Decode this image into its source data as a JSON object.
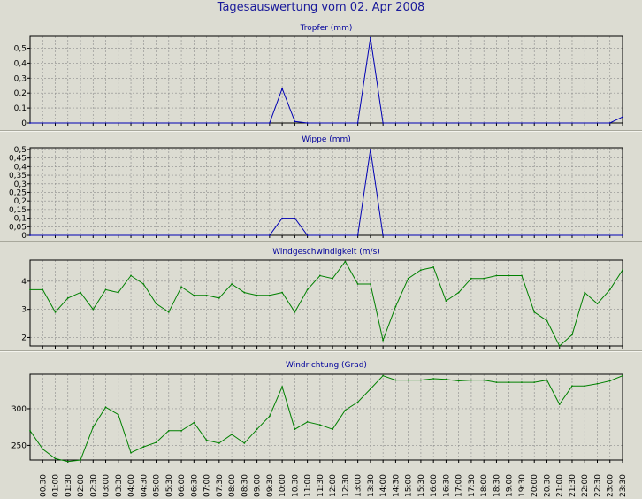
{
  "title": "Tagesauswertung vom 02. Apr 2008",
  "x_ticks": [
    "00:30",
    "01:00",
    "01:30",
    "02:00",
    "02:30",
    "03:00",
    "03:30",
    "04:00",
    "04:30",
    "05:00",
    "05:30",
    "06:00",
    "06:30",
    "07:00",
    "07:30",
    "08:00",
    "08:30",
    "09:00",
    "09:30",
    "10:00",
    "10:30",
    "11:00",
    "11:30",
    "12:00",
    "12:30",
    "13:00",
    "13:30",
    "14:00",
    "14:30",
    "15:00",
    "15:30",
    "16:00",
    "16:30",
    "17:00",
    "17:30",
    "18:00",
    "18:30",
    "19:00",
    "19:30",
    "20:00",
    "20:30",
    "21:00",
    "21:30",
    "22:00",
    "22:30",
    "23:00",
    "23:30"
  ],
  "colors": {
    "rain": "#0000b4",
    "wind": "#008000",
    "grid": "#8c8c8c",
    "axis": "#000000",
    "panel_title": "#00009c"
  },
  "chart_data": [
    {
      "type": "line",
      "title": "Tropfer (mm)",
      "xlim": [
        "00:00",
        "23:30"
      ],
      "ylim": [
        0,
        0.58
      ],
      "y_ticks": [
        "0",
        "0,1",
        "0,2",
        "0,3",
        "0,4",
        "0,5"
      ],
      "y_tick_values": [
        0,
        0.1,
        0.2,
        0.3,
        0.4,
        0.5
      ],
      "grid": true,
      "series": [
        {
          "x": [
            "00:00",
            "09:30",
            "10:00",
            "10:30",
            "11:00",
            "13:00",
            "13:30",
            "14:00",
            "23:00",
            "23:30"
          ],
          "values": [
            0,
            0,
            0.23,
            0.01,
            0,
            0,
            0.57,
            0,
            0,
            0.04
          ]
        }
      ]
    },
    {
      "type": "line",
      "title": "Wippe (mm)",
      "xlim": [
        "00:00",
        "23:30"
      ],
      "ylim": [
        0,
        0.51
      ],
      "y_ticks": [
        "0",
        "0,05",
        "0,1",
        "0,15",
        "0,2",
        "0,25",
        "0,3",
        "0,35",
        "0,4",
        "0,45",
        "0,5"
      ],
      "y_tick_values": [
        0,
        0.05,
        0.1,
        0.15,
        0.2,
        0.25,
        0.3,
        0.35,
        0.4,
        0.45,
        0.5
      ],
      "grid": true,
      "series": [
        {
          "x": [
            "00:00",
            "09:30",
            "10:00",
            "10:30",
            "11:00",
            "13:00",
            "13:30",
            "14:00",
            "23:30"
          ],
          "values": [
            0,
            0,
            0.1,
            0.1,
            0,
            0,
            0.5,
            0,
            0
          ]
        }
      ]
    },
    {
      "type": "line",
      "title": "Windgeschwindigkeit (m/s)",
      "xlim": [
        "00:00",
        "23:30"
      ],
      "ylim": [
        1.7,
        4.75
      ],
      "y_ticks": [
        "2",
        "3",
        "4"
      ],
      "y_tick_values": [
        2,
        3,
        4
      ],
      "grid": true,
      "series": [
        {
          "x": [
            "00:00",
            "00:30",
            "01:00",
            "01:30",
            "02:00",
            "02:30",
            "03:00",
            "03:30",
            "04:00",
            "04:30",
            "05:00",
            "05:30",
            "06:00",
            "06:30",
            "07:00",
            "07:30",
            "08:00",
            "08:30",
            "09:00",
            "09:30",
            "10:00",
            "10:30",
            "11:00",
            "11:30",
            "12:00",
            "12:30",
            "13:00",
            "13:30",
            "14:00",
            "14:30",
            "15:00",
            "15:30",
            "16:00",
            "16:30",
            "17:00",
            "17:30",
            "18:00",
            "18:30",
            "19:00",
            "19:30",
            "20:00",
            "20:30",
            "21:00",
            "21:30",
            "22:00",
            "22:30",
            "23:00",
            "23:30"
          ],
          "values": [
            3.7,
            3.7,
            2.9,
            3.4,
            3.6,
            3.0,
            3.7,
            3.6,
            4.2,
            3.9,
            3.2,
            2.9,
            3.8,
            3.5,
            3.5,
            3.4,
            3.9,
            3.6,
            3.5,
            3.5,
            3.6,
            2.9,
            3.7,
            4.2,
            4.1,
            4.7,
            3.9,
            3.9,
            1.9,
            3.1,
            4.1,
            4.4,
            4.5,
            3.3,
            3.6,
            4.1,
            4.1,
            4.2,
            4.2,
            4.2,
            2.9,
            2.6,
            1.7,
            2.1,
            3.6,
            3.2,
            3.7,
            4.4
          ]
        }
      ]
    },
    {
      "type": "line",
      "title": "Windrichtung (Grad)",
      "xlim": [
        "00:00",
        "23:30"
      ],
      "ylim": [
        230,
        347
      ],
      "y_ticks": [
        "250",
        "300"
      ],
      "y_tick_values": [
        250,
        300
      ],
      "grid": true,
      "series": [
        {
          "x": [
            "00:00",
            "00:30",
            "01:00",
            "01:30",
            "02:00",
            "02:30",
            "03:00",
            "03:30",
            "04:00",
            "04:30",
            "05:00",
            "05:30",
            "06:00",
            "06:30",
            "07:00",
            "07:30",
            "08:00",
            "08:30",
            "09:00",
            "09:30",
            "10:00",
            "10:30",
            "11:00",
            "11:30",
            "12:00",
            "12:30",
            "13:00",
            "13:30",
            "14:00",
            "14:30",
            "15:00",
            "15:30",
            "16:00",
            "16:30",
            "17:00",
            "17:30",
            "18:00",
            "18:30",
            "19:00",
            "19:30",
            "20:00",
            "20:30",
            "21:00",
            "21:30",
            "22:00",
            "22:30",
            "23:00",
            "23:30"
          ],
          "values": [
            270,
            245,
            232,
            228,
            230,
            275,
            302,
            292,
            240,
            248,
            254,
            270,
            270,
            281,
            257,
            253,
            265,
            253,
            272,
            290,
            330,
            272,
            282,
            278,
            272,
            298,
            309,
            327,
            345,
            339,
            339,
            339,
            341,
            340,
            338,
            339,
            339,
            336,
            336,
            336,
            336,
            339,
            306,
            331,
            331,
            334,
            338,
            345
          ]
        }
      ]
    }
  ]
}
